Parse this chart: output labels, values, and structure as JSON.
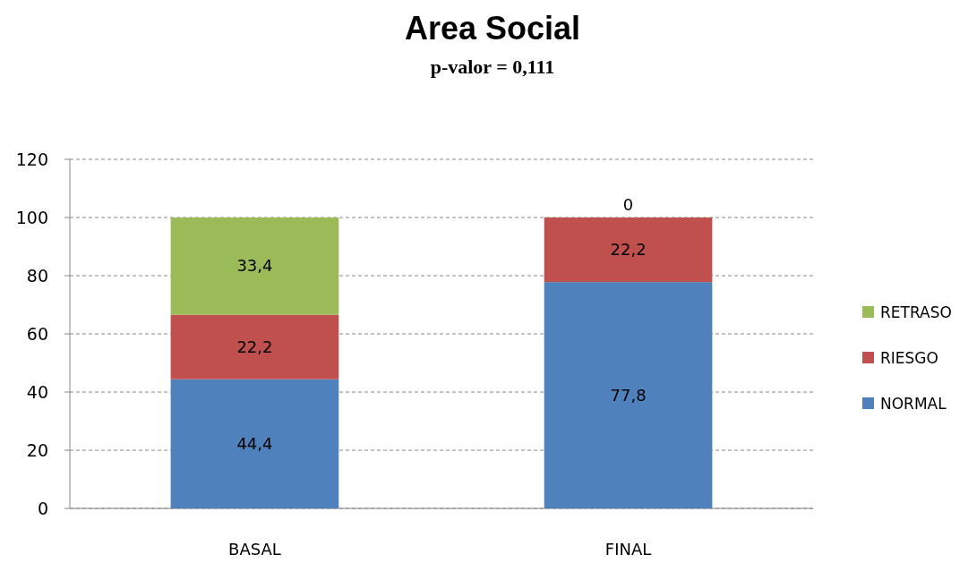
{
  "chart_data": {
    "type": "bar",
    "title": "Area Social",
    "subtitle": "p-valor = 0,111",
    "categories": [
      "BASAL",
      "FINAL"
    ],
    "series": [
      {
        "name": "NORMAL",
        "color": "#4f81bd",
        "values": [
          44.4,
          77.8
        ],
        "value_labels": [
          "44,4",
          "77,8"
        ]
      },
      {
        "name": "RIESGO",
        "color": "#c0504d",
        "values": [
          22.2,
          22.2
        ],
        "value_labels": [
          "22,2",
          "22,2"
        ]
      },
      {
        "name": "RETRASO",
        "color": "#9bbb59",
        "values": [
          33.4,
          0
        ],
        "value_labels": [
          "33,4",
          "0"
        ]
      }
    ],
    "stacked": true,
    "ylim": [
      0,
      120
    ],
    "yticks": [
      0,
      20,
      40,
      60,
      80,
      100,
      120
    ],
    "grid": "y",
    "legend": "right"
  }
}
